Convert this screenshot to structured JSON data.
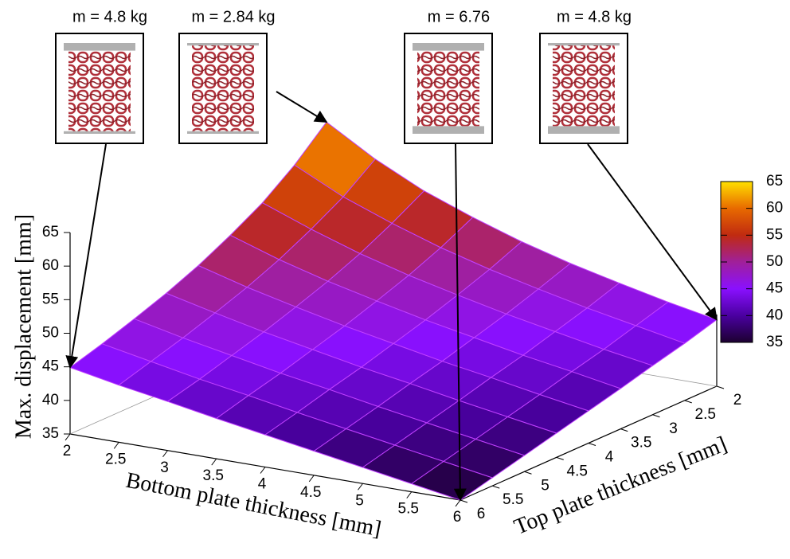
{
  "chart_data": {
    "type": "surface",
    "x_label": "Bottom plate thickness [mm]",
    "y_label": "Top plate thickness [mm]",
    "z_label": "Max. displacement [mm]",
    "x": [
      2,
      2.5,
      3,
      3.5,
      4,
      4.5,
      5,
      5.5,
      6
    ],
    "y": [
      2,
      2.5,
      3,
      3.5,
      4,
      4.5,
      5,
      5.5,
      6
    ],
    "z": [
      [
        64.5,
        60.2,
        56.7,
        54.0,
        51.6,
        49.6,
        47.9,
        46.3,
        44.9
      ],
      [
        60.2,
        56.7,
        54.0,
        51.6,
        49.6,
        47.9,
        46.3,
        44.9,
        43.5
      ],
      [
        56.7,
        54.0,
        51.6,
        49.6,
        47.9,
        46.3,
        44.9,
        43.5,
        42.3
      ],
      [
        54.0,
        51.6,
        49.6,
        47.9,
        46.3,
        44.9,
        43.5,
        42.3,
        41.0
      ],
      [
        51.6,
        49.6,
        47.9,
        46.3,
        44.9,
        43.5,
        42.3,
        41.0,
        39.8
      ],
      [
        49.6,
        47.9,
        46.3,
        44.9,
        43.5,
        42.3,
        41.0,
        39.8,
        38.6
      ],
      [
        47.9,
        46.3,
        44.9,
        43.5,
        42.3,
        41.0,
        39.8,
        38.6,
        37.4
      ],
      [
        46.3,
        44.9,
        43.5,
        42.3,
        41.0,
        39.8,
        38.6,
        37.4,
        36.2
      ],
      [
        44.9,
        43.5,
        42.3,
        41.0,
        39.8,
        38.6,
        37.4,
        36.2,
        35.0
      ]
    ],
    "xlim": [
      2,
      6
    ],
    "ylim": [
      2,
      6
    ],
    "zlim": [
      35,
      65
    ],
    "xticks": [
      2,
      2.5,
      3,
      3.5,
      4,
      4.5,
      5,
      5.5,
      6
    ],
    "yticks": [
      2,
      2.5,
      3,
      3.5,
      4,
      4.5,
      5,
      5.5,
      6
    ],
    "zticks": [
      35,
      40,
      45,
      50,
      55,
      60,
      65
    ],
    "cblim": [
      35,
      65
    ],
    "cbticks": [
      35,
      40,
      45,
      50,
      55,
      60,
      65
    ],
    "colormap": [
      "#1c0030",
      "#4a00a0",
      "#8a10ff",
      "#a0209a",
      "#c02a10",
      "#e86a00",
      "#ffe000"
    ],
    "edge_color": "#c040ff",
    "annotations": [
      {
        "text": "m = 4.8 kg",
        "x": 2,
        "y": 6
      },
      {
        "text": "m = 2.84 kg",
        "x": 2,
        "y": 2
      },
      {
        "text": "m =   6.76",
        "x": 6,
        "y": 6
      },
      {
        "text": "m = 4.8 kg",
        "x": 6,
        "y": 2
      }
    ]
  }
}
